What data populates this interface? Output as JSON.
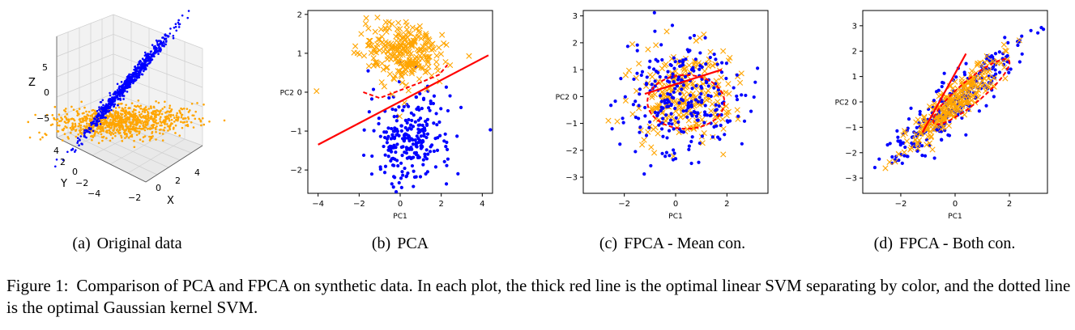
{
  "panels": [
    {
      "id": "a",
      "tag": "(a)",
      "caption": "Original data",
      "axes": {
        "x": {
          "label": "X",
          "ticks": [
            "−2",
            "0",
            "2",
            "4"
          ]
        },
        "y": {
          "label": "Y",
          "ticks": [
            "−4",
            "−2",
            "0",
            "2",
            "4"
          ]
        },
        "z": {
          "label": "Z",
          "ticks": [
            "5",
            "0",
            "−5"
          ]
        }
      }
    },
    {
      "id": "b",
      "tag": "(b)",
      "caption": "PCA",
      "xlabel": "PC1",
      "ylabel": "PC2",
      "xticks": [
        "−4",
        "−2",
        "0",
        "2",
        "4"
      ],
      "yticks": [
        "2",
        "1",
        "0",
        "−1",
        "−2"
      ]
    },
    {
      "id": "c",
      "tag": "(c)",
      "caption": "FPCA - Mean con.",
      "xlabel": "PC1",
      "ylabel": "PC2",
      "xticks": [
        "−2",
        "0",
        "2"
      ],
      "yticks": [
        "3",
        "2",
        "1",
        "0",
        "−1",
        "−2",
        "−3"
      ]
    },
    {
      "id": "d",
      "tag": "(d)",
      "caption": "FPCA - Both con.",
      "xlabel": "PC1",
      "ylabel": "PC2",
      "xticks": [
        "−2",
        "0",
        "2"
      ],
      "yticks": [
        "3",
        "2",
        "1",
        "0",
        "−1",
        "−2",
        "−3"
      ]
    }
  ],
  "figure_caption": {
    "number": "Figure 1:",
    "text": "Comparison of PCA and FPCA on synthetic data. In each plot, the thick red line is the optimal linear SVM separating by color, and the dotted line is the optimal Gaussian kernel SVM."
  },
  "colors": {
    "blue": "#0000ff",
    "orange": "#ffa500",
    "red": "#ff0000"
  },
  "chart_data": [
    {
      "type": "scatter",
      "title": "",
      "projection": "3d",
      "xlabel": "X",
      "ylabel": "Y",
      "zlabel": "Z",
      "xlim": [
        -4,
        5
      ],
      "ylim": [
        -5,
        5
      ],
      "zlim": [
        -7,
        7
      ],
      "grid": true,
      "series": [
        {
          "color": "blue",
          "marker": "dot",
          "description_points": [
            [
              -0.5,
              0,
              -5.5
            ],
            [
              0.5,
              0.5,
              0
            ],
            [
              1.5,
              1,
              5.5
            ]
          ],
          "shape": "thin elongated ellipsoid along (1,0.5,11)"
        },
        {
          "color": "orange",
          "marker": "dot",
          "description_points": [
            [
              -3,
              -3,
              -5
            ],
            [
              0,
              0,
              -5
            ],
            [
              3,
              3,
              -5
            ]
          ],
          "shape": "flat disc near z=-5"
        }
      ]
    },
    {
      "type": "scatter",
      "xlabel": "PC1",
      "ylabel": "PC2",
      "xlim": [
        -4.5,
        4.5
      ],
      "ylim": [
        -2.6,
        2.1
      ],
      "grid": false,
      "series": [
        {
          "color": "blue",
          "marker": "dot",
          "center": [
            0.5,
            -1.2
          ],
          "spread": [
            1.0,
            0.6
          ]
        },
        {
          "color": "orange",
          "marker": "x",
          "center": [
            0.2,
            1.0
          ],
          "spread": [
            1.0,
            0.4
          ]
        }
      ],
      "linear_svm": [
        [
          -4.0,
          -1.35
        ],
        [
          4.3,
          0.95
        ]
      ],
      "kernel_svm_points": [
        [
          -1.8,
          0.0
        ],
        [
          -1.0,
          -0.15
        ],
        [
          0,
          0.05
        ],
        [
          1.0,
          0.25
        ],
        [
          1.9,
          0.45
        ],
        [
          2.3,
          0.7
        ]
      ]
    },
    {
      "type": "scatter",
      "xlabel": "PC1",
      "ylabel": "PC2",
      "xlim": [
        -3.6,
        3.6
      ],
      "ylim": [
        -3.6,
        3.2
      ],
      "grid": false,
      "series": [
        {
          "color": "blue",
          "marker": "dot",
          "center": [
            0.2,
            0.0
          ],
          "spread": [
            1.1,
            1.1
          ]
        },
        {
          "color": "orange",
          "marker": "x",
          "center": [
            0.3,
            0.0
          ],
          "spread": [
            1.0,
            0.8
          ]
        }
      ],
      "linear_svm": [
        [
          -1.2,
          0.1
        ],
        [
          1.8,
          1.0
        ]
      ],
      "kernel_svm_ellipse": {
        "cx": 0.4,
        "cy": -0.2,
        "rx": 1.5,
        "ry": 1.0
      }
    },
    {
      "type": "scatter",
      "xlabel": "PC1",
      "ylabel": "PC2",
      "xlim": [
        -3.4,
        3.4
      ],
      "ylim": [
        -3.6,
        3.6
      ],
      "grid": false,
      "series": [
        {
          "color": "blue",
          "marker": "dot",
          "center": [
            0,
            0
          ],
          "spread": [
            1.2,
            1.2
          ],
          "correlation": 0.9
        },
        {
          "color": "orange",
          "marker": "x",
          "center": [
            0,
            0
          ],
          "spread": [
            1.0,
            1.0
          ],
          "correlation": 0.93
        }
      ],
      "linear_svm": [
        [
          -1.2,
          -1.2
        ],
        [
          0.4,
          1.9
        ]
      ],
      "kernel_svm_ellipse": {
        "cx": 0.6,
        "cy": 0.4,
        "rx": 1.8,
        "ry": 0.45,
        "angle": 40
      }
    }
  ]
}
